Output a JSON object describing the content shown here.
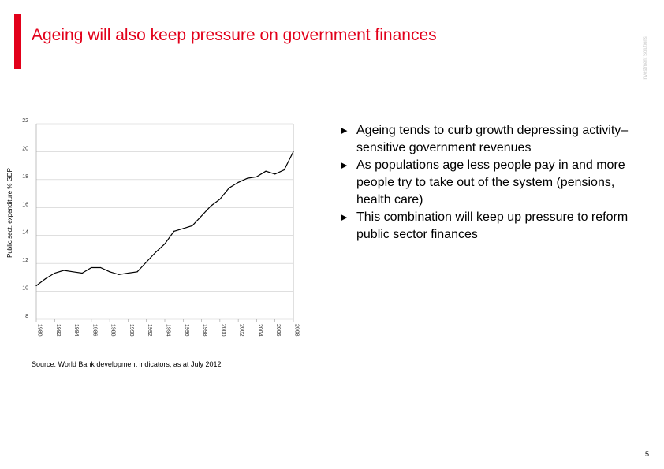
{
  "title": "Ageing will also keep pressure on government finances",
  "side_text": "Investment Solutions",
  "bullets": [
    "Ageing tends to curb growth depressing activity–sensitive government revenues",
    "As populations age less people pay in and more people try to take out of the system (pensions, health care)",
    "This combination will keep up pressure to reform public sector finances"
  ],
  "bullet_glyph": "▶",
  "source": "Source: World Bank development indicators, as at July 2012",
  "page_number": "5",
  "colors": {
    "accent": "#e2001a",
    "line": "#000000",
    "axis": "#999999"
  },
  "chart_data": {
    "type": "line",
    "ylabel": "Public sect. expenditure % GDP",
    "ylim": [
      8,
      22
    ],
    "yticks": [
      8,
      10,
      12,
      14,
      16,
      18,
      20,
      22
    ],
    "xlim": [
      1980,
      2008
    ],
    "xticks": [
      1980,
      1982,
      1984,
      1986,
      1988,
      1990,
      1992,
      1994,
      1996,
      1998,
      2000,
      2002,
      2004,
      2006,
      2008
    ],
    "grid": true,
    "series": [
      {
        "x": [
          1980,
          1981,
          1982,
          1983,
          1984,
          1985,
          1986,
          1987,
          1988,
          1989,
          1990,
          1991,
          1992,
          1993,
          1994,
          1995,
          1996,
          1997,
          1998,
          1999,
          2000,
          2001,
          2002,
          2003,
          2004,
          2005,
          2006,
          2007,
          2008
        ],
        "values": [
          10.4,
          10.9,
          11.3,
          11.5,
          11.4,
          11.3,
          11.7,
          11.7,
          11.4,
          11.2,
          11.3,
          11.4,
          12.1,
          12.8,
          13.4,
          14.3,
          14.5,
          14.7,
          15.4,
          16.1,
          16.6,
          17.4,
          17.8,
          18.1,
          18.2,
          18.6,
          18.4,
          18.7,
          20.0
        ]
      }
    ]
  }
}
